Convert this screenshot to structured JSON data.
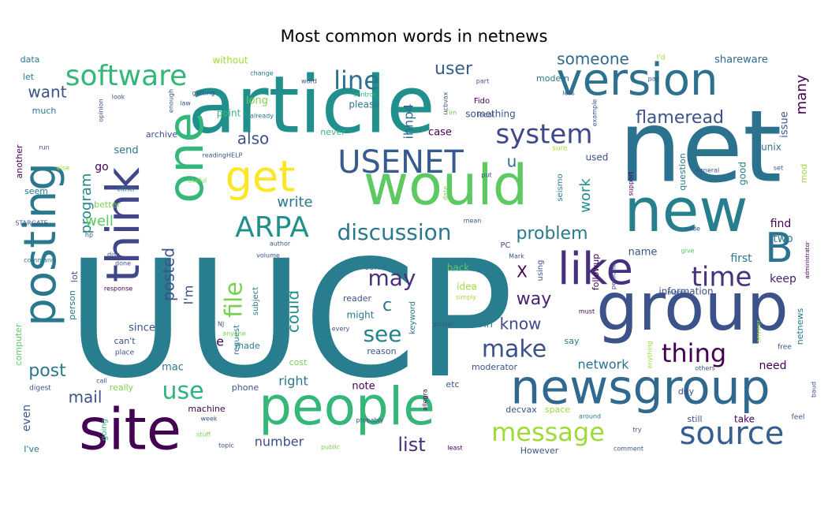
{
  "chart_data": {
    "type": "wordcloud",
    "title": "Most common words in netnews",
    "colormap": [
      "#440154",
      "#46337e",
      "#365c8d",
      "#277f8e",
      "#1fa187",
      "#4ac16d",
      "#a0da39",
      "#fde725"
    ],
    "words": [
      {
        "text": "UUCP",
        "weight": 100,
        "color": "#287d8e"
      },
      {
        "text": "net",
        "weight": 72,
        "color": "#2b728e"
      },
      {
        "text": "article",
        "weight": 68,
        "color": "#21908d"
      },
      {
        "text": "group",
        "weight": 58,
        "color": "#3b528b"
      },
      {
        "text": "new",
        "weight": 56,
        "color": "#277f8e"
      },
      {
        "text": "people",
        "weight": 55,
        "color": "#35b779"
      },
      {
        "text": "site",
        "weight": 52,
        "color": "#440154"
      },
      {
        "text": "newsgroup",
        "weight": 50,
        "color": "#31688e"
      },
      {
        "text": "would",
        "weight": 48,
        "color": "#5ec962"
      },
      {
        "text": "version",
        "weight": 47,
        "color": "#2c718e"
      },
      {
        "text": "posting",
        "weight": 45,
        "color": "#2a788e"
      },
      {
        "text": "one",
        "weight": 44,
        "color": "#35b779"
      },
      {
        "text": "think",
        "weight": 40,
        "color": "#404688"
      },
      {
        "text": "like",
        "weight": 38,
        "color": "#46307e"
      },
      {
        "text": "get",
        "weight": 36,
        "color": "#fde725"
      },
      {
        "text": "B",
        "weight": 36,
        "color": "#2c728e"
      },
      {
        "text": "source",
        "weight": 33,
        "color": "#355f8d"
      },
      {
        "text": "software",
        "weight": 28,
        "color": "#35b779"
      },
      {
        "text": "USENET",
        "weight": 30,
        "color": "#365c8d"
      },
      {
        "text": "ARPA",
        "weight": 28,
        "color": "#21908d"
      },
      {
        "text": "system",
        "weight": 26,
        "color": "#3e4989"
      },
      {
        "text": "time",
        "weight": 26,
        "color": "#46327e"
      },
      {
        "text": "line",
        "weight": 25,
        "color": "#2c728e"
      },
      {
        "text": "discussion",
        "weight": 22,
        "color": "#2a788e"
      },
      {
        "text": "message",
        "weight": 24,
        "color": "#a0da39"
      },
      {
        "text": "make",
        "weight": 24,
        "color": "#3b528b"
      },
      {
        "text": "thing",
        "weight": 24,
        "color": "#440154"
      },
      {
        "text": "file",
        "weight": 22,
        "color": "#7ad151"
      },
      {
        "text": "use",
        "weight": 24,
        "color": "#2fb47c"
      },
      {
        "text": "may",
        "weight": 22,
        "color": "#46327e"
      },
      {
        "text": "see",
        "weight": 22,
        "color": "#26828e"
      },
      {
        "text": "problem",
        "weight": 18,
        "color": "#2a788e"
      },
      {
        "text": "flameread",
        "weight": 18,
        "color": "#3b528b"
      },
      {
        "text": "user",
        "weight": 18,
        "color": "#355f8d"
      },
      {
        "text": "someone",
        "weight": 17,
        "color": "#31688e"
      },
      {
        "text": "want",
        "weight": 17,
        "color": "#3b528b"
      },
      {
        "text": "post",
        "weight": 18,
        "color": "#2a788e"
      },
      {
        "text": "list",
        "weight": 17,
        "color": "#46307e"
      },
      {
        "text": "mail",
        "weight": 17,
        "color": "#3b528b"
      },
      {
        "text": "could",
        "weight": 16,
        "color": "#21908d"
      },
      {
        "text": "way",
        "weight": 17,
        "color": "#481f70"
      },
      {
        "text": "know",
        "weight": 16,
        "color": "#3e4989"
      },
      {
        "text": "posted",
        "weight": 16,
        "color": "#3b528b"
      },
      {
        "text": "program",
        "weight": 16,
        "color": "#25858e"
      },
      {
        "text": "also",
        "weight": 15,
        "color": "#3b528b"
      },
      {
        "text": "write",
        "weight": 14,
        "color": "#2a788e"
      },
      {
        "text": "well",
        "weight": 14,
        "color": "#5ec962"
      },
      {
        "text": "work",
        "weight": 14,
        "color": "#21908d"
      },
      {
        "text": "network",
        "weight": 13,
        "color": "#2c728e"
      },
      {
        "text": "many",
        "weight": 14,
        "color": "#440154"
      },
      {
        "text": "number",
        "weight": 12,
        "color": "#3e4989"
      },
      {
        "text": "right",
        "weight": 12,
        "color": "#2a788e"
      },
      {
        "text": "ihnp4",
        "weight": 12,
        "color": "#31688e"
      },
      {
        "text": "I'm",
        "weight": 12,
        "color": "#3b528b"
      },
      {
        "text": "u",
        "weight": 13,
        "color": "#2c718e"
      },
      {
        "text": "c",
        "weight": 16,
        "color": "#2a788e"
      },
      {
        "text": "X",
        "weight": 16,
        "color": "#440154"
      },
      {
        "text": "e",
        "weight": 11,
        "color": "#440154"
      },
      {
        "text": "even",
        "weight": 11,
        "color": "#365c8d"
      },
      {
        "text": "need",
        "weight": 11,
        "color": "#440154"
      },
      {
        "text": "first",
        "weight": 11,
        "color": "#2a788e"
      },
      {
        "text": "find",
        "weight": 11,
        "color": "#440154"
      },
      {
        "text": "keep",
        "weight": 11,
        "color": "#481f70"
      },
      {
        "text": "two",
        "weight": 11,
        "color": "#2a788e"
      },
      {
        "text": "name",
        "weight": 10,
        "color": "#3b528b"
      },
      {
        "text": "note",
        "weight": 10,
        "color": "#440154"
      },
      {
        "text": "mac",
        "weight": 10,
        "color": "#2a788e"
      },
      {
        "text": "since",
        "weight": 10,
        "color": "#3b528b"
      },
      {
        "text": "shareware",
        "weight": 10,
        "color": "#31688e"
      },
      {
        "text": "unix",
        "weight": 10,
        "color": "#2c718e"
      },
      {
        "text": "issue",
        "weight": 10,
        "color": "#3b528b"
      },
      {
        "text": "go",
        "weight": 10,
        "color": "#440154"
      },
      {
        "text": "send",
        "weight": 10,
        "color": "#2a788e"
      },
      {
        "text": "without",
        "weight": 10,
        "color": "#a0da39"
      },
      {
        "text": "long",
        "weight": 10,
        "color": "#7ad151"
      },
      {
        "text": "point",
        "weight": 9,
        "color": "#35b779"
      },
      {
        "text": "please",
        "weight": 9,
        "color": "#2a788e"
      },
      {
        "text": "case",
        "weight": 9,
        "color": "#440154"
      },
      {
        "text": "something",
        "weight": 9,
        "color": "#3b528b"
      },
      {
        "text": "used",
        "weight": 9,
        "color": "#3b528b"
      },
      {
        "text": "modem",
        "weight": 8,
        "color": "#2a788e"
      },
      {
        "text": "data",
        "weight": 8,
        "color": "#2a788e"
      },
      {
        "text": "let",
        "weight": 8,
        "color": "#2a788e"
      },
      {
        "text": "much",
        "weight": 8,
        "color": "#2a788e"
      },
      {
        "text": "another",
        "weight": 8,
        "color": "#440154"
      },
      {
        "text": "seem",
        "weight": 8,
        "color": "#2a788e"
      },
      {
        "text": "better",
        "weight": 8,
        "color": "#7ad151"
      },
      {
        "text": "archive",
        "weight": 8,
        "color": "#3b528b"
      },
      {
        "text": "never",
        "weight": 8,
        "color": "#35b779"
      },
      {
        "text": "good",
        "weight": 8,
        "color": "#2a788e"
      },
      {
        "text": "question",
        "weight": 8,
        "color": "#2a788e"
      },
      {
        "text": "mod",
        "weight": 8,
        "color": "#a0da39"
      },
      {
        "text": "followup",
        "weight": 8,
        "color": "#440154"
      },
      {
        "text": "seismo",
        "weight": 7,
        "color": "#2a788e"
      },
      {
        "text": "information",
        "weight": 8,
        "color": "#3b528b"
      },
      {
        "text": "netnews",
        "weight": 8,
        "color": "#2a788e"
      },
      {
        "text": "lot",
        "weight": 8,
        "color": "#3b528b"
      },
      {
        "text": "person",
        "weight": 8,
        "color": "#2a788e"
      },
      {
        "text": "computer",
        "weight": 8,
        "color": "#5ec962"
      },
      {
        "text": "can't",
        "weight": 8,
        "color": "#3b528b"
      },
      {
        "text": "made",
        "weight": 8,
        "color": "#2a788e"
      },
      {
        "text": "cost",
        "weight": 8,
        "color": "#7ad151"
      },
      {
        "text": "really",
        "weight": 8,
        "color": "#7ad151"
      },
      {
        "text": "going",
        "weight": 7,
        "color": "#35b779"
      },
      {
        "text": "machine",
        "weight": 8,
        "color": "#440154"
      },
      {
        "text": "phone",
        "weight": 8,
        "color": "#3b528b"
      },
      {
        "text": "reader",
        "weight": 8,
        "color": "#3b528b"
      },
      {
        "text": "might",
        "weight": 9,
        "color": "#2a788e"
      },
      {
        "text": "reason",
        "weight": 8,
        "color": "#3b528b"
      },
      {
        "text": "MIT",
        "weight": 8,
        "color": "#2a788e"
      },
      {
        "text": "come",
        "weight": 8,
        "color": "#2a788e"
      },
      {
        "text": "back",
        "weight": 8,
        "color": "#5ec962"
      },
      {
        "text": "idea",
        "weight": 8,
        "color": "#a0da39"
      },
      {
        "text": "say",
        "weight": 8,
        "color": "#2a788e"
      },
      {
        "text": "moderator",
        "weight": 8,
        "color": "#3b528b"
      },
      {
        "text": "etc",
        "weight": 8,
        "color": "#3b528b"
      },
      {
        "text": "decvax",
        "weight": 8,
        "color": "#3b528b"
      },
      {
        "text": "space",
        "weight": 8,
        "color": "#a0da39"
      },
      {
        "text": "day",
        "weight": 8,
        "color": "#3b528b"
      },
      {
        "text": "still",
        "weight": 8,
        "color": "#3b528b"
      },
      {
        "text": "take",
        "weight": 8,
        "color": "#440154"
      },
      {
        "text": "However",
        "weight": 7,
        "color": "#3b528b"
      },
      {
        "text": "I've",
        "weight": 8,
        "color": "#2a788e"
      },
      {
        "text": "subject",
        "weight": 7,
        "color": "#2a788e"
      },
      {
        "text": "request",
        "weight": 7,
        "color": "#2a788e"
      },
      {
        "text": "keyword",
        "weight": 7,
        "color": "#2a788e"
      },
      {
        "text": "using",
        "weight": 7,
        "color": "#3b528b"
      },
      {
        "text": "PC",
        "weight": 6,
        "color": "#3b528b"
      },
      {
        "text": "Fido",
        "weight": 8,
        "color": "#440154"
      },
      {
        "text": "local",
        "weight": 6,
        "color": "#3b528b"
      },
      {
        "text": "sure",
        "weight": 7,
        "color": "#a0da39"
      },
      {
        "text": "free",
        "weight": 6,
        "color": "#3b528b"
      },
      {
        "text": "feel",
        "weight": 6,
        "color": "#3b528b"
      },
      {
        "text": "baud",
        "weight": 6,
        "color": "#3b528b"
      },
      {
        "text": "digest",
        "weight": 6,
        "color": "#3b528b"
      },
      {
        "text": "STARGATE",
        "weight": 5,
        "color": "#3b528b"
      },
      {
        "text": "command",
        "weight": 5,
        "color": "#2a788e"
      },
      {
        "text": "disk",
        "weight": 5,
        "color": "#3b528b"
      },
      {
        "text": "done",
        "weight": 5,
        "color": "#3b528b"
      },
      {
        "text": "hp",
        "weight": 5,
        "color": "#3b528b"
      },
      {
        "text": "response",
        "weight": 5,
        "color": "#440154"
      },
      {
        "text": "call",
        "weight": 5,
        "color": "#3b528b"
      },
      {
        "text": "place",
        "weight": 6,
        "color": "#3b528b"
      },
      {
        "text": "either",
        "weight": 5,
        "color": "#2a788e"
      },
      {
        "text": "else",
        "weight": 5,
        "color": "#a0da39"
      },
      {
        "text": "run",
        "weight": 5,
        "color": "#3b528b"
      },
      {
        "text": "look",
        "weight": 5,
        "color": "#3b528b"
      },
      {
        "text": "opinion",
        "weight": 5,
        "color": "#3b528b"
      },
      {
        "text": "enough",
        "weight": 5,
        "color": "#3b528b"
      },
      {
        "text": "getting",
        "weight": 5,
        "color": "#3b528b"
      },
      {
        "text": "law",
        "weight": 5,
        "color": "#3b528b"
      },
      {
        "text": "change",
        "weight": 5,
        "color": "#2a788e"
      },
      {
        "text": "word",
        "weight": 5,
        "color": "#3b528b"
      },
      {
        "text": "already",
        "weight": 5,
        "color": "#2a788e"
      },
      {
        "text": "control",
        "weight": 5,
        "color": "#35b779"
      },
      {
        "text": "ucbvax",
        "weight": 5,
        "color": "#3b528b"
      },
      {
        "text": "Tim",
        "weight": 5,
        "color": "#7ad151"
      },
      {
        "text": "part",
        "weight": 5,
        "color": "#3b528b"
      },
      {
        "text": "less",
        "weight": 5,
        "color": "#3b528b"
      },
      {
        "text": "pay",
        "weight": 5,
        "color": "#3b528b"
      },
      {
        "text": "example",
        "weight": 5,
        "color": "#3b528b"
      },
      {
        "text": "I'd",
        "weight": 6,
        "color": "#a0da39"
      },
      {
        "text": "support",
        "weight": 5,
        "color": "#440154"
      },
      {
        "text": "general",
        "weight": 5,
        "color": "#3b528b"
      },
      {
        "text": "set",
        "weight": 5,
        "color": "#3b528b"
      },
      {
        "text": "node",
        "weight": 5,
        "color": "#3b528b"
      },
      {
        "text": "give",
        "weight": 5,
        "color": "#5ec962"
      },
      {
        "text": "administrator",
        "weight": 5,
        "color": "#440154"
      },
      {
        "text": "money",
        "weight": 5,
        "color": "#3b528b"
      },
      {
        "text": "must",
        "weight": 5,
        "color": "#440154"
      },
      {
        "text": "personal",
        "weight": 5,
        "color": "#3b528b"
      },
      {
        "text": "Mark",
        "weight": 5,
        "color": "#3b528b"
      },
      {
        "text": "mean",
        "weight": 5,
        "color": "#3b528b"
      },
      {
        "text": "put",
        "weight": 5,
        "color": "#3b528b"
      },
      {
        "text": "date",
        "weight": 5,
        "color": "#7ad151"
      },
      {
        "text": "useful",
        "weight": 5,
        "color": "#7ad151"
      },
      {
        "text": "readingHELP",
        "weight": 5,
        "color": "#3b528b"
      },
      {
        "text": "author",
        "weight": 5,
        "color": "#3b528b"
      },
      {
        "text": "volume",
        "weight": 5,
        "color": "#3b528b"
      },
      {
        "text": "NJ",
        "weight": 5,
        "color": "#3b528b"
      },
      {
        "text": "anyone",
        "weight": 5,
        "color": "#7ad151"
      },
      {
        "text": "every",
        "weight": 5,
        "color": "#3b528b"
      },
      {
        "text": "poster",
        "weight": 5,
        "color": "#3b528b"
      },
      {
        "text": "simply",
        "weight": 5,
        "color": "#a0da39"
      },
      {
        "text": "anything",
        "weight": 5,
        "color": "#a0da39"
      },
      {
        "text": "answer",
        "weight": 5,
        "color": "#a0da39"
      },
      {
        "text": "others",
        "weight": 5,
        "color": "#3b528b"
      },
      {
        "text": "allegra",
        "weight": 5,
        "color": "#440154"
      },
      {
        "text": "around",
        "weight": 5,
        "color": "#2a788e"
      },
      {
        "text": "try",
        "weight": 5,
        "color": "#3b528b"
      },
      {
        "text": "comment",
        "weight": 5,
        "color": "#3b528b"
      },
      {
        "text": "least",
        "weight": 5,
        "color": "#440154"
      },
      {
        "text": "public",
        "weight": 5,
        "color": "#7ad151"
      },
      {
        "text": "topic",
        "weight": 5,
        "color": "#3b528b"
      },
      {
        "text": "stuff",
        "weight": 5,
        "color": "#7ad151"
      },
      {
        "text": "week",
        "weight": 5,
        "color": "#3b528b"
      },
      {
        "text": "probably",
        "weight": 5,
        "color": "#3b528b"
      }
    ]
  }
}
